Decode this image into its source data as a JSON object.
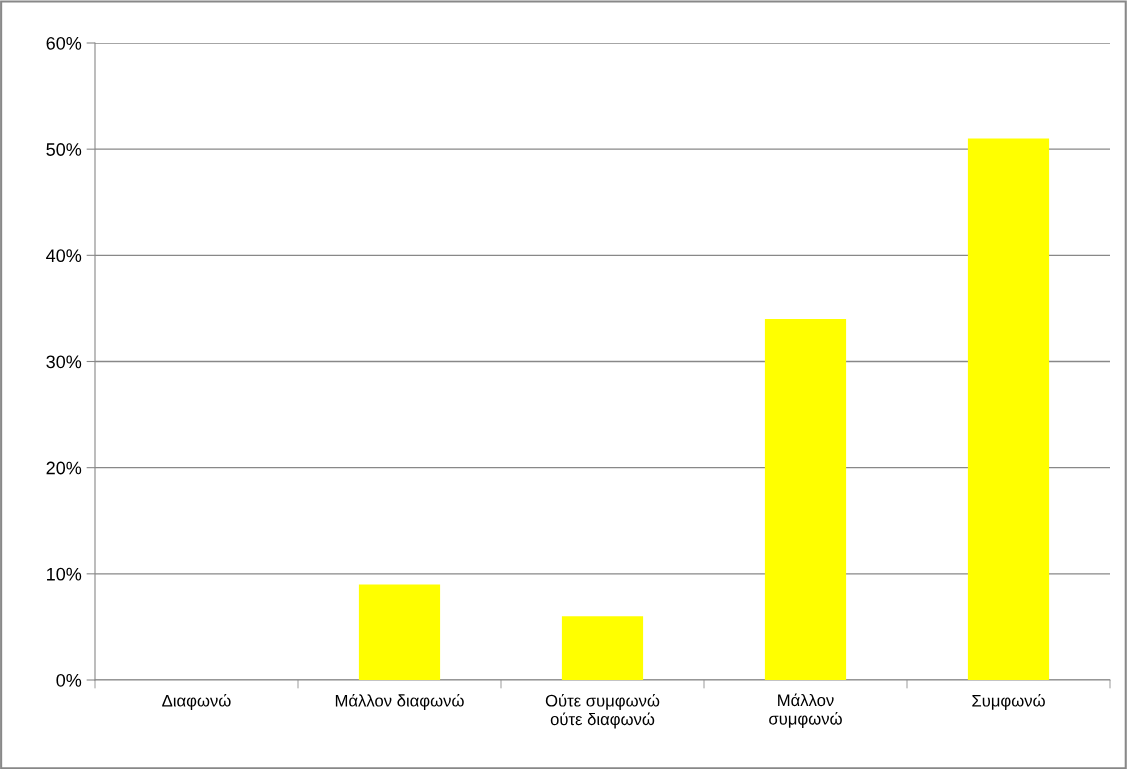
{
  "chart_data": {
    "type": "bar",
    "categories": [
      "Διαφωνώ",
      "Μάλλον διαφωνώ",
      "Ούτε συμφωνώ\nούτε διαφωνώ",
      "Μάλλον\nσυμφωνώ",
      "Συμφωνώ"
    ],
    "values": [
      0,
      9,
      6,
      34,
      51
    ],
    "color": "#ffff00",
    "ylim": [
      0,
      60
    ],
    "yticks": [
      {
        "value": 0,
        "label": "0%"
      },
      {
        "value": 10,
        "label": "10%"
      },
      {
        "value": 20,
        "label": "20%"
      },
      {
        "value": 30,
        "label": "30%"
      },
      {
        "value": 40,
        "label": "40%"
      },
      {
        "value": 50,
        "label": "50%"
      },
      {
        "value": 60,
        "label": "60%"
      }
    ],
    "grid": "y"
  }
}
